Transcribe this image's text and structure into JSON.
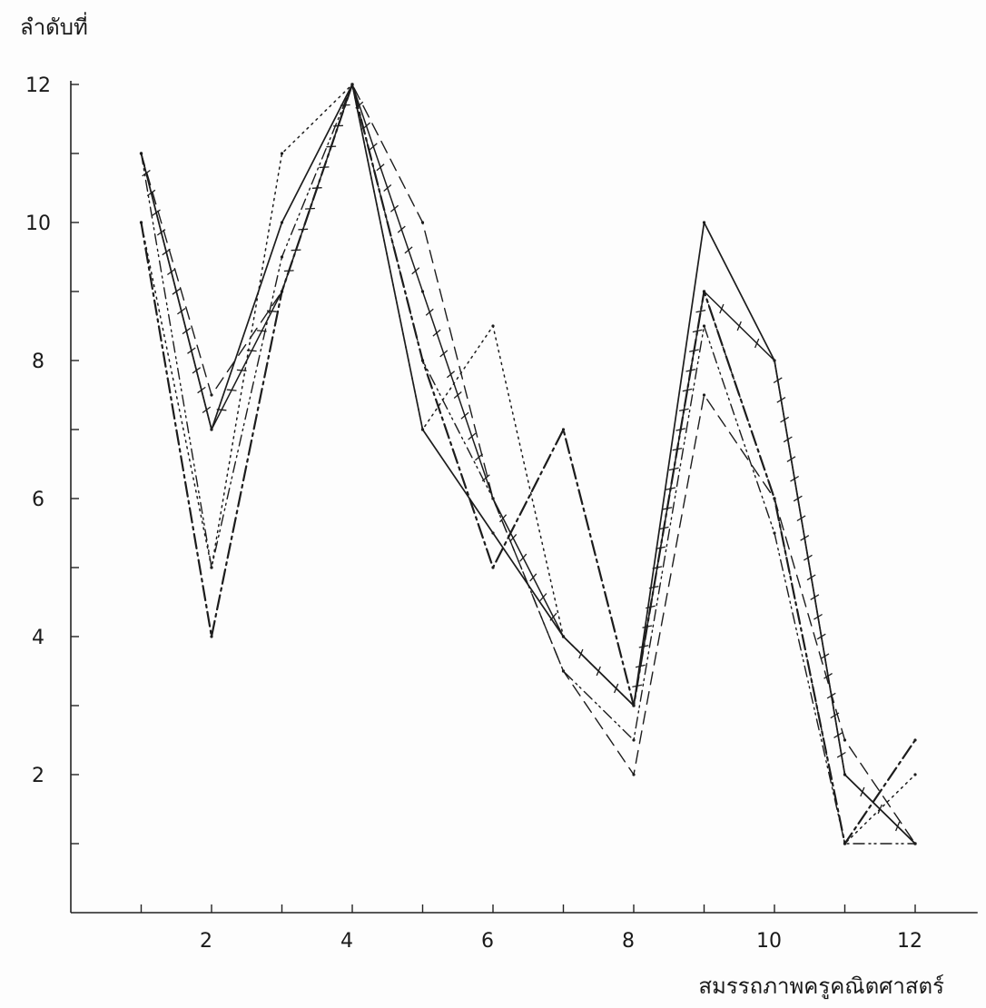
{
  "chart_data": {
    "type": "line",
    "ylabel": "ลำดับที่",
    "xlabel": "สมรรถภาพครูคณิตศาสตร์",
    "xlim": [
      0,
      12.5
    ],
    "ylim": [
      0,
      12
    ],
    "x_ticks": [
      1,
      2,
      3,
      4,
      5,
      6,
      7,
      8,
      9,
      10,
      11,
      12
    ],
    "x_tick_labels": [
      "2",
      "4",
      "6",
      "8",
      "10",
      "12"
    ],
    "x_tick_label_values": [
      2,
      4,
      6,
      8,
      10,
      12
    ],
    "y_ticks": [
      1,
      2,
      3,
      4,
      5,
      6,
      7,
      8,
      9,
      10,
      11,
      12
    ],
    "y_tick_labels": [
      "2",
      "4",
      "6",
      "8",
      "10",
      "12"
    ],
    "y_tick_label_values": [
      2,
      4,
      6,
      8,
      10,
      12
    ],
    "grid": false,
    "legend": "none",
    "x": [
      1,
      2,
      3,
      4,
      5,
      6,
      7,
      8,
      9,
      10,
      11,
      12
    ],
    "series": [
      {
        "style": "solid",
        "values": [
          11,
          7,
          10,
          12,
          7,
          5.5,
          4,
          3,
          10,
          8,
          2,
          1
        ]
      },
      {
        "style": "solid-x",
        "values": [
          11,
          7,
          9,
          12,
          9,
          6,
          4,
          3,
          9,
          8,
          2,
          1
        ]
      },
      {
        "style": "dashed",
        "values": [
          11,
          7.5,
          9,
          12,
          10,
          6,
          3.5,
          2,
          7.5,
          6,
          2.5,
          1
        ]
      },
      {
        "style": "dotted",
        "values": [
          10,
          5,
          11,
          12,
          7,
          8.5,
          4,
          3,
          9,
          6,
          1,
          2
        ]
      },
      {
        "style": "dash-dot",
        "values": [
          10,
          4,
          9,
          12,
          8,
          5,
          7,
          3,
          9,
          6,
          1,
          2.5
        ]
      },
      {
        "style": "dash-dot-dot",
        "values": [
          11,
          5,
          9.5,
          12,
          8,
          6,
          3.5,
          2.5,
          8.5,
          5.5,
          1,
          1
        ]
      }
    ]
  }
}
